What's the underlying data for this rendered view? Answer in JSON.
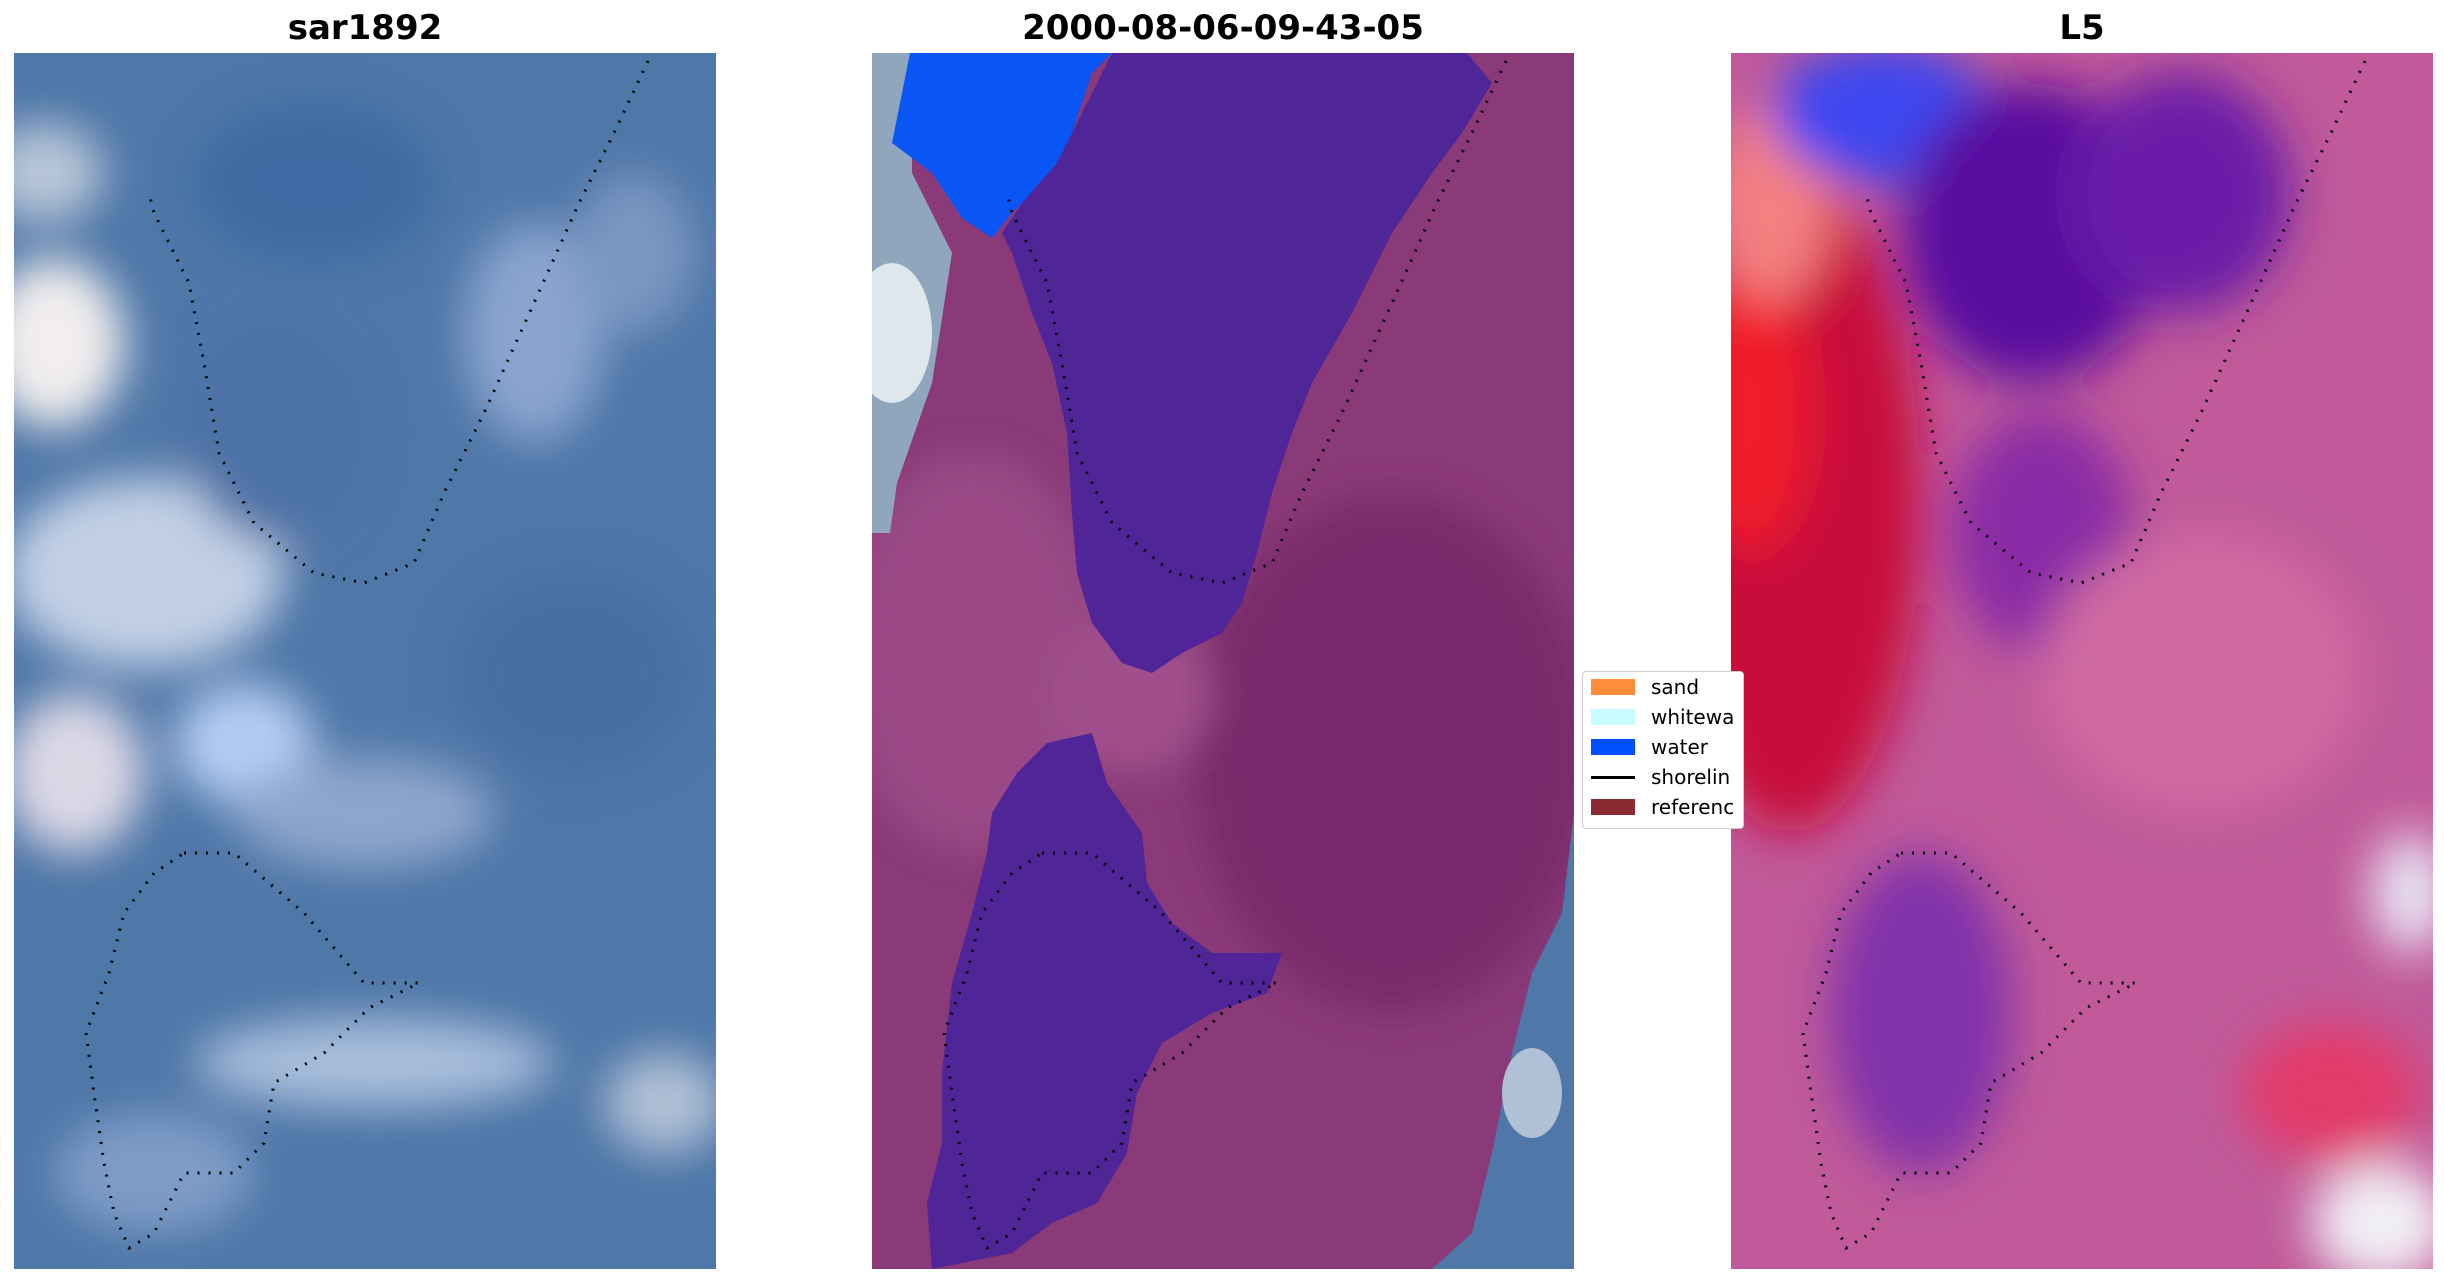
{
  "panels": [
    {
      "title": "sar1892"
    },
    {
      "title": "2000-08-06-09-43-05"
    },
    {
      "title": "L5"
    }
  ],
  "legend": {
    "items": [
      {
        "label": "sand",
        "color": "#ff8c3a",
        "kind": "patch"
      },
      {
        "label": "whitewa",
        "color": "#c8fdff",
        "kind": "patch"
      },
      {
        "label": "water",
        "color": "#0050ff",
        "kind": "patch"
      },
      {
        "label": "shorelin",
        "color": "#000000",
        "kind": "line"
      },
      {
        "label": "referenc",
        "color": "#8b2a30",
        "kind": "patch"
      }
    ]
  },
  "colors": {
    "sar_base": "#4f77a8",
    "class_sand": "#8a3a78",
    "class_water_dark": "#4f2598",
    "class_water_bright": "#0050ff",
    "l5_low": "#5a0fa0",
    "l5_mid": "#c05a9a",
    "l5_high": "#e0102e"
  }
}
